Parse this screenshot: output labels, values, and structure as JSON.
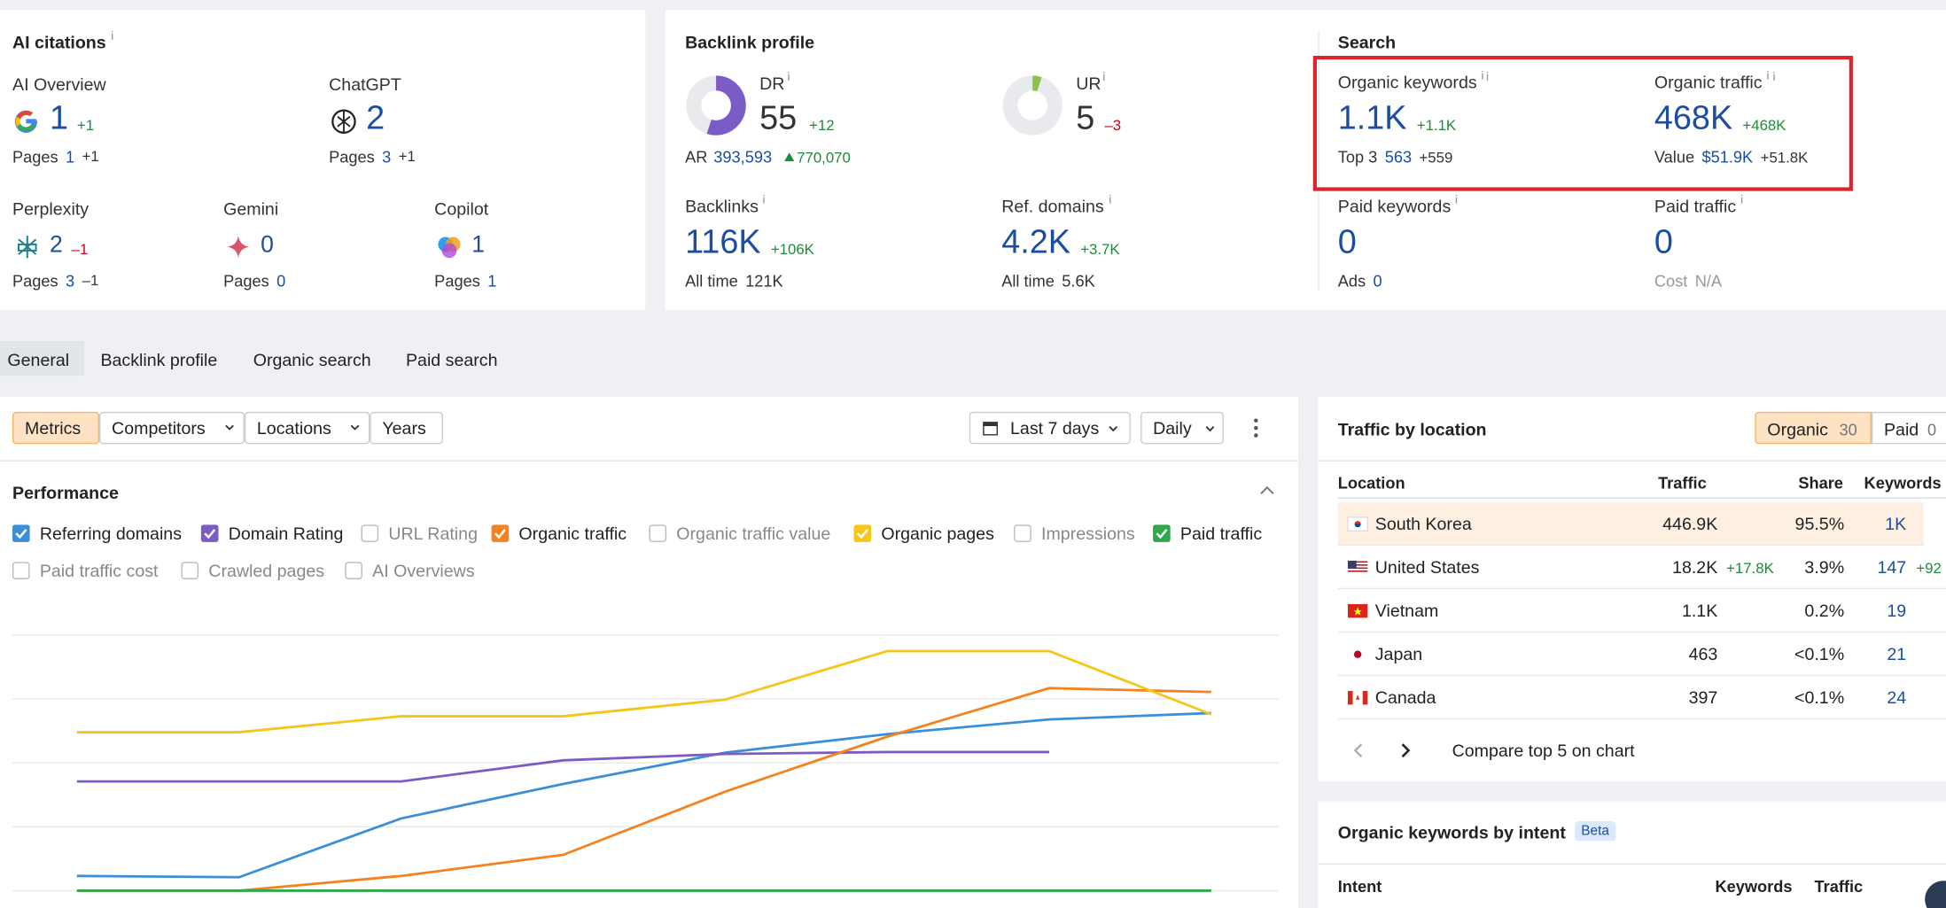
{
  "ai_citations": {
    "title": "AI citations",
    "items": [
      {
        "label": "AI Overview",
        "value": "1",
        "change": "+1",
        "sub_label": "Pages",
        "sub_value": "1",
        "sub_change": "+1"
      },
      {
        "label": "ChatGPT",
        "value": "2",
        "sub_label": "Pages",
        "sub_value": "3",
        "sub_change": "+1"
      },
      {
        "label": "Perplexity",
        "value": "2",
        "change": "–1",
        "sub_label": "Pages",
        "sub_value": "3",
        "sub_change": "–1"
      },
      {
        "label": "Gemini",
        "value": "0",
        "sub_label": "Pages",
        "sub_value": "0"
      },
      {
        "label": "Copilot",
        "value": "1",
        "sub_label": "Pages",
        "sub_value": "1"
      }
    ]
  },
  "backlink_profile": {
    "title": "Backlink profile",
    "dr": {
      "label": "DR",
      "value": 55,
      "change": "+12"
    },
    "ar": {
      "label": "AR",
      "value": "393,593",
      "change": "770,070"
    },
    "ur": {
      "label": "UR",
      "value": 5,
      "change": "–3"
    },
    "backlinks": {
      "label": "Backlinks",
      "value": "116K",
      "change": "+106K",
      "sub_label": "All time",
      "sub_value": "121K"
    },
    "ref_domains": {
      "label": "Ref. domains",
      "value": "4.2K",
      "change": "+3.7K",
      "sub_label": "All time",
      "sub_value": "5.6K"
    }
  },
  "search": {
    "title": "Search",
    "organic_keywords": {
      "label": "Organic keywords",
      "value": "1.1K",
      "change": "+1.1K",
      "sub_label": "Top 3",
      "sub_value": "563",
      "sub_change": "+559"
    },
    "organic_traffic": {
      "label": "Organic traffic",
      "value": "468K",
      "change": "+468K",
      "sub_label": "Value",
      "sub_value": "$51.9K",
      "sub_change": "+51.8K"
    },
    "paid_keywords": {
      "label": "Paid keywords",
      "value": "0",
      "sub_label": "Ads",
      "sub_value": "0"
    },
    "paid_traffic": {
      "label": "Paid traffic",
      "value": "0",
      "sub_label": "Cost",
      "sub_value": "N/A"
    }
  },
  "tabs": [
    "General",
    "Backlink profile",
    "Organic search",
    "Paid search"
  ],
  "toolbar": {
    "left": [
      "Metrics",
      "Competitors",
      "Locations",
      "Years"
    ],
    "period": "Last 7 days",
    "interval": "Daily"
  },
  "performance": {
    "title": "Performance"
  },
  "chart_data": {
    "type": "line",
    "categories": [
      null,
      null,
      null,
      null,
      null,
      null,
      null,
      null
    ],
    "ylim": [
      0,
      4
    ],
    "yticks": [
      0,
      1,
      2,
      3,
      4
    ],
    "grid": true,
    "series": [
      {
        "name": "Referring domains",
        "checked": true,
        "color": "#3b8fd9",
        "values": [
          0.23,
          0.21,
          1.13,
          1.67,
          2.16,
          2.45,
          2.68,
          2.78
        ]
      },
      {
        "name": "Domain Rating",
        "checked": true,
        "color": "#7c5cc4",
        "values": [
          1.71,
          1.71,
          1.71,
          2.04,
          2.14,
          2.17,
          2.17,
          null
        ]
      },
      {
        "name": "URL Rating",
        "checked": false
      },
      {
        "name": "Organic traffic",
        "checked": true,
        "color": "#f5821f",
        "values": [
          0,
          0,
          0.23,
          0.56,
          1.55,
          2.41,
          3.17,
          3.11
        ]
      },
      {
        "name": "Organic traffic value",
        "checked": false
      },
      {
        "name": "Organic pages",
        "checked": true,
        "color": "#f5c518",
        "values": [
          2.48,
          2.48,
          2.73,
          2.73,
          2.99,
          3.75,
          3.75,
          2.76
        ]
      },
      {
        "name": "Impressions",
        "checked": false
      },
      {
        "name": "Paid traffic",
        "checked": true,
        "color": "#2ea84a",
        "values": [
          0,
          0,
          0,
          0,
          0,
          0,
          0,
          0
        ]
      },
      {
        "name": "Paid traffic cost",
        "checked": false
      },
      {
        "name": "Crawled pages",
        "checked": false
      },
      {
        "name": "AI Overviews",
        "checked": false
      }
    ]
  },
  "traffic_by_location": {
    "title": "Traffic by location",
    "toggles": [
      {
        "label": "Organic",
        "count": "30"
      },
      {
        "label": "Paid",
        "count": "0"
      }
    ],
    "headers": [
      "Location",
      "Traffic",
      "Share",
      "Keywords"
    ],
    "rows": [
      {
        "location": "South Korea",
        "traffic": "446.9K",
        "share": "95.5%",
        "keywords": "1K"
      },
      {
        "location": "United States",
        "traffic": "18.2K",
        "traffic_change": "+17.8K",
        "share": "3.9%",
        "keywords": "147",
        "keywords_change": "+92"
      },
      {
        "location": "Vietnam",
        "traffic": "1.1K",
        "share": "0.2%",
        "keywords": "19"
      },
      {
        "location": "Japan",
        "traffic": "463",
        "share": "<0.1%",
        "keywords": "21"
      },
      {
        "location": "Canada",
        "traffic": "397",
        "share": "<0.1%",
        "keywords": "24"
      }
    ],
    "footer": "Compare top 5 on chart"
  },
  "keywords_by_intent": {
    "title": "Organic keywords by intent",
    "badge": "Beta",
    "headers": [
      "Intent",
      "Keywords",
      "Traffic"
    ]
  }
}
